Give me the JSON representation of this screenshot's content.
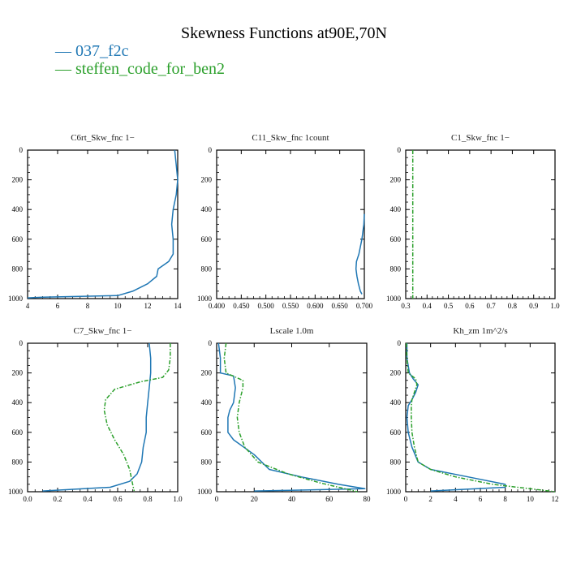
{
  "title": "Skewness Functions at90E,70N",
  "legend": [
    {
      "label": "— 037_f2c",
      "color": "#1f77b4"
    },
    {
      "label": "— steffen_code_for_ben2",
      "color": "#2ca02c"
    }
  ],
  "chart_data": [
    {
      "type": "line",
      "title": "C6rt_Skw_fnc   1−",
      "xlim": [
        4,
        14
      ],
      "xticks": [
        4,
        6,
        8,
        10,
        12,
        14
      ],
      "xtick_labels": [
        "4",
        "6",
        "8",
        "10",
        "12",
        "14"
      ],
      "ylim": [
        1000,
        0
      ],
      "yticks": [
        0,
        200,
        400,
        600,
        800,
        1000
      ],
      "ytick_labels": [
        "0",
        "200",
        "400",
        "600",
        "800",
        "1000"
      ],
      "series": [
        {
          "name": "037_f2c",
          "color": "#1f77b4",
          "dashed": false,
          "x": [
            13.8,
            13.9,
            14.0,
            13.9,
            13.7,
            13.6,
            13.7,
            13.7,
            13.4,
            12.7,
            12.6,
            12.0,
            11.0,
            10.0,
            5.0,
            4.0
          ],
          "y": [
            0,
            100,
            200,
            300,
            400,
            500,
            600,
            700,
            750,
            800,
            850,
            900,
            950,
            980,
            990,
            995
          ]
        }
      ]
    },
    {
      "type": "line",
      "title": "C11_Skw_fnc   1count",
      "xlim": [
        0.4,
        0.7
      ],
      "xticks": [
        0.4,
        0.45,
        0.5,
        0.55,
        0.6,
        0.65,
        0.7
      ],
      "xtick_labels": [
        "0.400",
        "0.450",
        "0.500",
        "0.550",
        "0.600",
        "0.650",
        "0.700"
      ],
      "ylim": [
        1000,
        0
      ],
      "yticks": [
        0,
        200,
        400,
        600,
        800,
        1000
      ],
      "ytick_labels": [
        "0",
        "200",
        "400",
        "600",
        "800",
        "1000"
      ],
      "series": [
        {
          "name": "037_f2c",
          "color": "#1f77b4",
          "dashed": false,
          "x": [
            0.7,
            0.699,
            0.695,
            0.689,
            0.684,
            0.683,
            0.685,
            0.688,
            0.692,
            0.695
          ],
          "y": [
            430,
            500,
            600,
            700,
            750,
            800,
            850,
            900,
            950,
            970
          ]
        }
      ]
    },
    {
      "type": "line",
      "title": "C1_Skw_fnc   1−",
      "xlim": [
        0.3,
        1.0
      ],
      "xticks": [
        0.3,
        0.4,
        0.5,
        0.6,
        0.7,
        0.8,
        0.9,
        1.0
      ],
      "xtick_labels": [
        "0.3",
        "0.4",
        "0.5",
        "0.6",
        "0.7",
        "0.8",
        "0.9",
        "1.0"
      ],
      "ylim": [
        1000,
        0
      ],
      "yticks": [
        0,
        200,
        400,
        600,
        800,
        1000
      ],
      "ytick_labels": [
        "0",
        "200",
        "400",
        "600",
        "800",
        "1000"
      ],
      "series": [
        {
          "name": "steffen_code_for_ben2",
          "color": "#2ca02c",
          "dashed": true,
          "x": [
            0.333,
            0.333
          ],
          "y": [
            0,
            1000
          ]
        }
      ]
    },
    {
      "type": "line",
      "title": "C7_Skw_fnc   1−",
      "xlim": [
        0.0,
        1.0
      ],
      "xticks": [
        0.0,
        0.2,
        0.4,
        0.6,
        0.8,
        1.0
      ],
      "xtick_labels": [
        "0.0",
        "0.2",
        "0.4",
        "0.6",
        "0.8",
        "1.0"
      ],
      "ylim": [
        1000,
        0
      ],
      "yticks": [
        0,
        200,
        400,
        600,
        800,
        1000
      ],
      "ytick_labels": [
        "0",
        "200",
        "400",
        "600",
        "800",
        "1000"
      ],
      "series": [
        {
          "name": "037_f2c",
          "color": "#1f77b4",
          "dashed": false,
          "x": [
            0.81,
            0.82,
            0.82,
            0.81,
            0.8,
            0.79,
            0.79,
            0.77,
            0.76,
            0.73,
            0.68,
            0.55,
            0.1
          ],
          "y": [
            0,
            100,
            200,
            300,
            400,
            500,
            600,
            700,
            800,
            880,
            930,
            970,
            995
          ]
        },
        {
          "name": "steffen_code_for_ben2",
          "color": "#2ca02c",
          "dashed": true,
          "x": [
            0.95,
            0.95,
            0.94,
            0.9,
            0.75,
            0.58,
            0.52,
            0.51,
            0.53,
            0.58,
            0.64,
            0.68,
            0.69,
            0.7,
            0.71
          ],
          "y": [
            0,
            100,
            180,
            230,
            260,
            310,
            380,
            450,
            550,
            650,
            750,
            850,
            900,
            950,
            995
          ]
        }
      ]
    },
    {
      "type": "line",
      "title": "Lscale   1.0m",
      "xlim": [
        0,
        80
      ],
      "xticks": [
        0,
        20,
        40,
        60,
        80
      ],
      "xtick_labels": [
        "0",
        "20",
        "40",
        "60",
        "80"
      ],
      "ylim": [
        1000,
        0
      ],
      "yticks": [
        0,
        200,
        400,
        600,
        800,
        1000
      ],
      "ytick_labels": [
        "0",
        "200",
        "400",
        "600",
        "800",
        "1000"
      ],
      "series": [
        {
          "name": "037_f2c",
          "color": "#1f77b4",
          "dashed": false,
          "x": [
            1,
            2,
            2,
            9,
            10,
            9,
            7,
            6,
            6,
            9,
            20,
            28,
            45,
            65,
            79,
            20
          ],
          "y": [
            0,
            100,
            200,
            220,
            300,
            400,
            450,
            500,
            600,
            650,
            750,
            850,
            900,
            950,
            980,
            995
          ]
        },
        {
          "name": "steffen_code_for_ben2",
          "color": "#2ca02c",
          "dashed": true,
          "x": [
            5,
            4,
            5,
            14,
            14,
            12,
            11,
            12,
            15,
            22,
            38,
            55,
            65,
            72,
            75
          ],
          "y": [
            0,
            100,
            200,
            250,
            300,
            400,
            500,
            600,
            700,
            800,
            880,
            940,
            970,
            990,
            1000
          ]
        }
      ]
    },
    {
      "type": "line",
      "title": "Kh_zm   1m^2/s",
      "xlim": [
        0,
        12
      ],
      "xticks": [
        0,
        2,
        4,
        6,
        8,
        10,
        12
      ],
      "xtick_labels": [
        "0",
        "2",
        "4",
        "6",
        "8",
        "10",
        "12"
      ],
      "ylim": [
        1000,
        0
      ],
      "yticks": [
        0,
        200,
        400,
        600,
        800,
        1000
      ],
      "ytick_labels": [
        "0",
        "200",
        "400",
        "600",
        "800",
        "1000"
      ],
      "series": [
        {
          "name": "037_f2c",
          "color": "#1f77b4",
          "dashed": false,
          "x": [
            0.1,
            0.1,
            0.3,
            0.6,
            1.0,
            0.8,
            0.5,
            0.2,
            0.1,
            0.2,
            0.5,
            1.0,
            2.0,
            5.0,
            8.0,
            8.0,
            2.0
          ],
          "y": [
            0,
            100,
            200,
            240,
            280,
            330,
            380,
            420,
            500,
            600,
            700,
            800,
            850,
            900,
            950,
            970,
            995
          ]
        },
        {
          "name": "steffen_code_for_ben2",
          "color": "#2ca02c",
          "dashed": true,
          "x": [
            0.05,
            0.1,
            0.2,
            0.8,
            0.9,
            0.7,
            0.5,
            0.45,
            0.45,
            0.5,
            0.7,
            1.0,
            2.0,
            4.0,
            7.0,
            10.0,
            12.0
          ],
          "y": [
            0,
            100,
            200,
            240,
            280,
            330,
            380,
            420,
            500,
            600,
            700,
            800,
            850,
            900,
            950,
            980,
            1000
          ]
        }
      ]
    }
  ]
}
